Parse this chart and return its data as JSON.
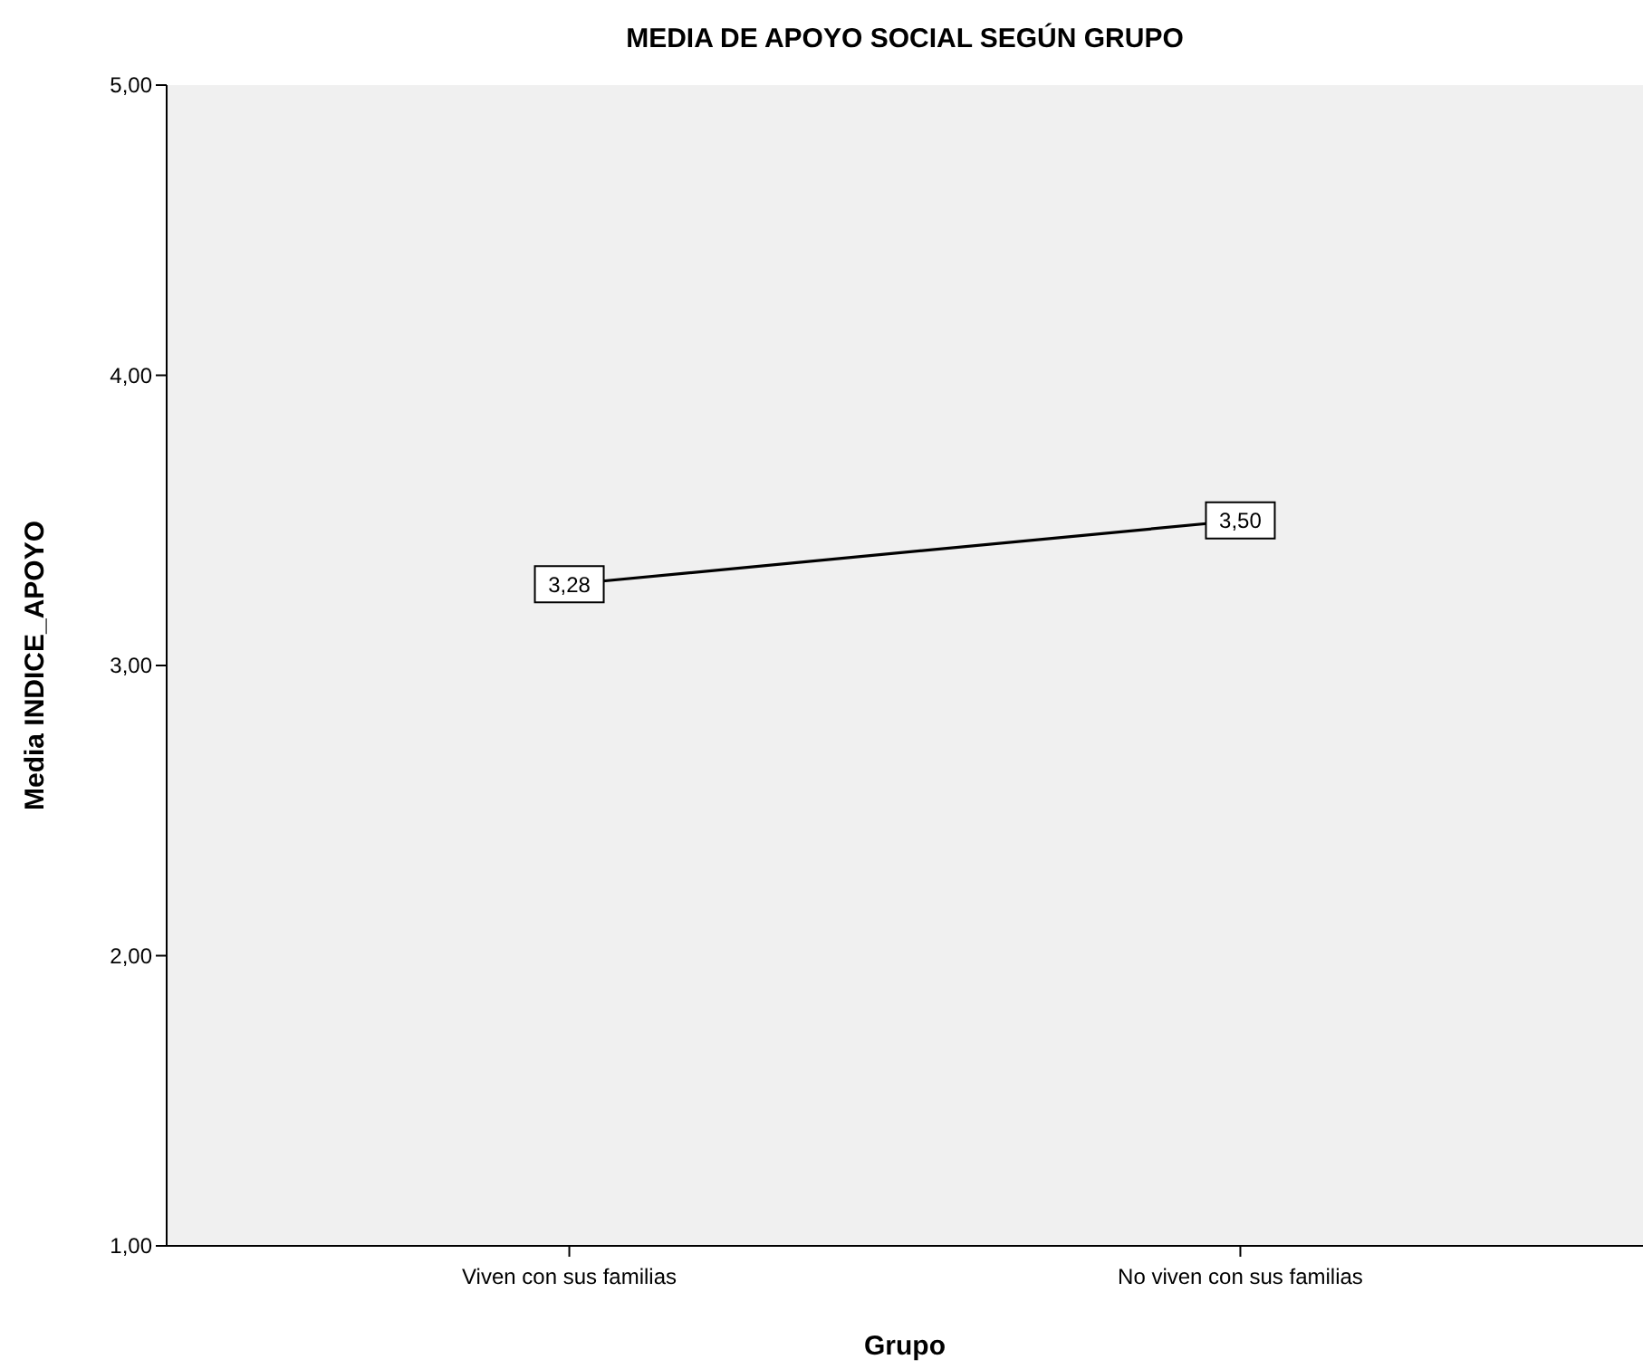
{
  "chart_data": {
    "type": "line",
    "title": "MEDIA DE APOYO SOCIAL SEGÚN GRUPO",
    "xlabel": "Grupo",
    "ylabel": "Media INDICE_APOYO",
    "categories": [
      "Viven con sus familias",
      "No viven con sus familias"
    ],
    "values": [
      3.28,
      3.5
    ],
    "value_labels": [
      "3,28",
      "3,50"
    ],
    "color": "#000000",
    "marker": "square",
    "line_style": "solid",
    "ylim": [
      1,
      5
    ],
    "yticks": [
      {
        "value": 1,
        "label": "1,00"
      },
      {
        "value": 2,
        "label": "2,00"
      },
      {
        "value": 3,
        "label": "3,00"
      },
      {
        "value": 4,
        "label": "4,00"
      },
      {
        "value": 5,
        "label": "5,00"
      }
    ],
    "grid": false
  }
}
